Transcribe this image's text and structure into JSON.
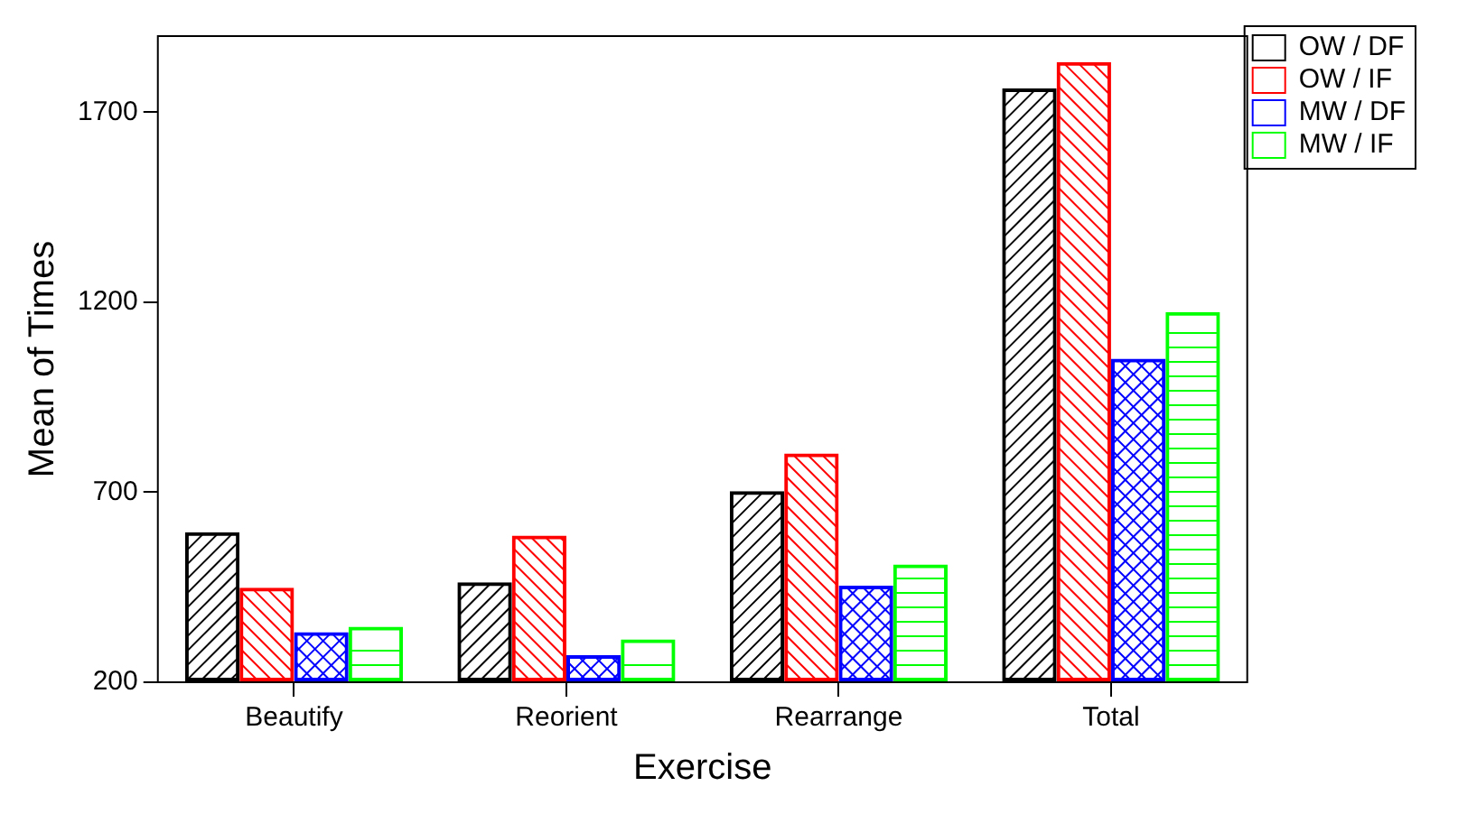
{
  "chart_data": {
    "type": "bar",
    "xlabel": "Exercise",
    "ylabel": "Mean of Times",
    "categories": [
      "Beautify",
      "Reorient",
      "Rearrange",
      "Total"
    ],
    "series": [
      {
        "name": "OW / DF",
        "color": "#000000",
        "values": [
          595,
          463,
          703,
          1762
        ]
      },
      {
        "name": "OW / IF",
        "color": "#ff0000",
        "values": [
          449,
          586,
          802,
          1832
        ]
      },
      {
        "name": "MW / DF",
        "color": "#0000ff",
        "values": [
          332,
          271,
          454,
          1051
        ]
      },
      {
        "name": "MW / IF",
        "color": "#00ff00",
        "values": [
          346,
          313,
          510,
          1174
        ]
      }
    ],
    "ylim": [
      200,
      1900
    ],
    "yticks": [
      200,
      700,
      1200,
      1700
    ],
    "grid": false,
    "legend": "top right"
  }
}
